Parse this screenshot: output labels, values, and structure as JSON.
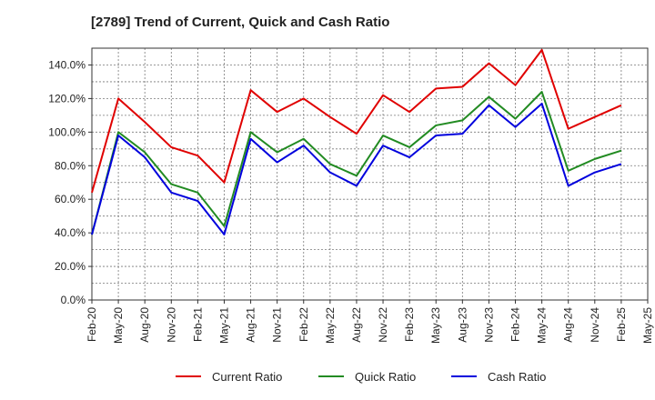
{
  "chart_data": {
    "type": "line",
    "title": "[2789]  Trend of Current, Quick and Cash Ratio",
    "xlabel": "",
    "ylabel": "",
    "ylim": [
      0,
      150
    ],
    "yticks": [
      "0.0%",
      "20.0%",
      "40.0%",
      "60.0%",
      "80.0%",
      "100.0%",
      "120.0%",
      "140.0%"
    ],
    "ytick_values": [
      0,
      20,
      40,
      60,
      80,
      100,
      120,
      140
    ],
    "x_tick_labels": [
      "Feb-20",
      "May-20",
      "Aug-20",
      "Nov-20",
      "Feb-21",
      "May-21",
      "Aug-21",
      "Nov-21",
      "Feb-22",
      "May-22",
      "Aug-22",
      "Nov-22",
      "Feb-23",
      "May-23",
      "Aug-23",
      "Nov-23",
      "Feb-24",
      "May-24",
      "Aug-24",
      "Nov-24",
      "Feb-25",
      "May-25"
    ],
    "grid": true,
    "legend_position": "bottom",
    "series": [
      {
        "name": "Current Ratio",
        "color": "#e00000",
        "values": [
          64,
          120,
          106,
          91,
          86,
          70,
          125,
          112,
          120,
          109,
          99,
          122,
          112,
          126,
          127,
          141,
          128,
          149,
          102,
          109,
          116
        ]
      },
      {
        "name": "Quick Ratio",
        "color": "#228b22",
        "values": [
          39,
          100,
          88,
          69,
          64,
          44,
          100,
          88,
          96,
          81,
          74,
          98,
          91,
          104,
          107,
          121,
          108,
          124,
          77,
          84,
          89
        ]
      },
      {
        "name": "Cash Ratio",
        "color": "#0000dd",
        "values": [
          39,
          98,
          85,
          64,
          59,
          39,
          96,
          82,
          92,
          76,
          68,
          92,
          85,
          98,
          99,
          116,
          103,
          117,
          68,
          76,
          81
        ]
      }
    ]
  }
}
